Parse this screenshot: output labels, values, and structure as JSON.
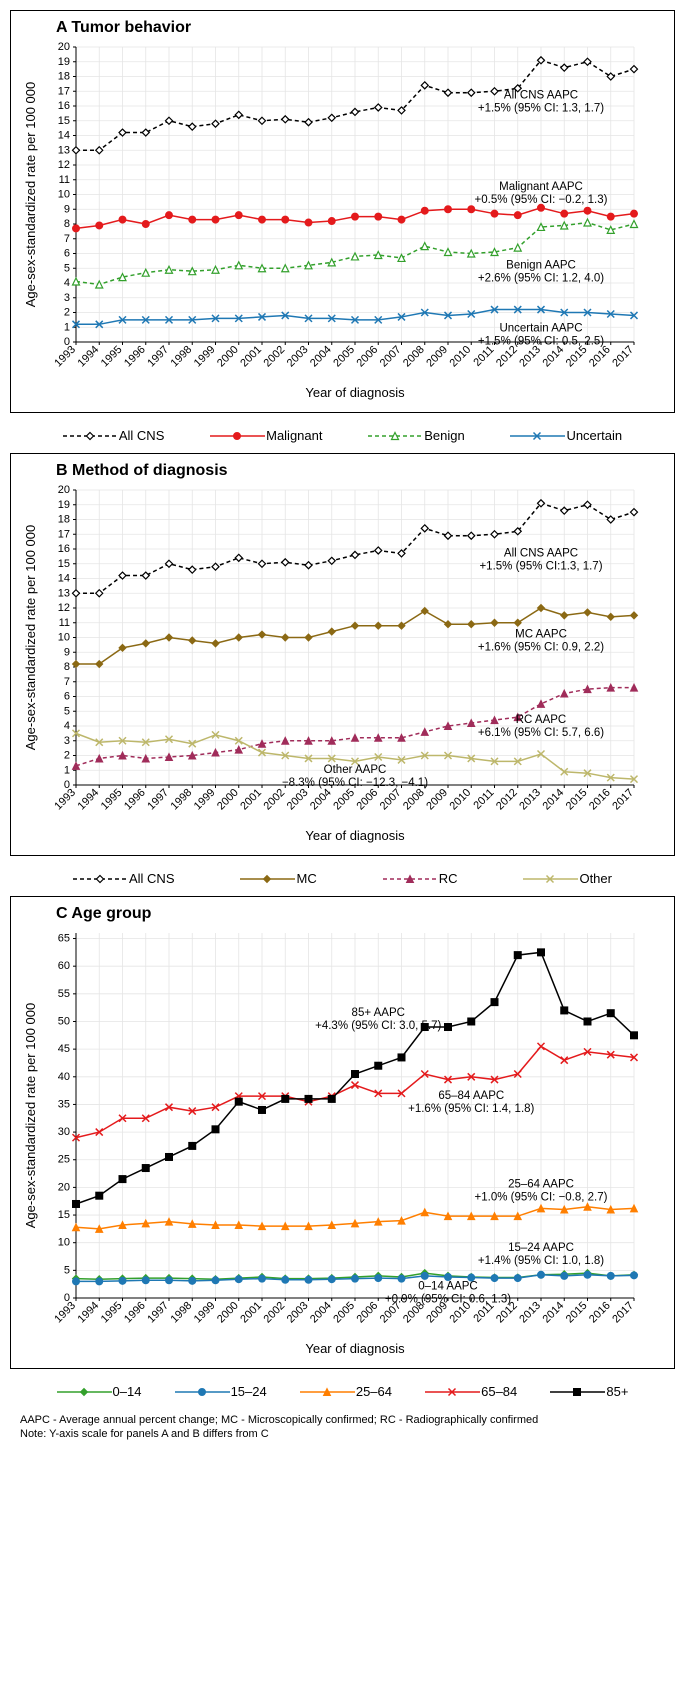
{
  "years": [
    1993,
    1994,
    1995,
    1996,
    1997,
    1998,
    1999,
    2000,
    2001,
    2002,
    2003,
    2004,
    2005,
    2006,
    2007,
    2008,
    2009,
    2010,
    2011,
    2012,
    2013,
    2014,
    2015,
    2016,
    2017
  ],
  "panelA": {
    "title": "A Tumor behavior",
    "ylabel": "Age-sex-standardized rate per 100 000",
    "xlabel": "Year of diagnosis",
    "ylim": [
      0,
      20
    ],
    "ytick_step": 1,
    "grid_color": "#e5e5e5",
    "series": {
      "allcns": {
        "label": "All CNS",
        "color": "#000000",
        "dash": "4,3",
        "marker": "diamond",
        "values": [
          13.0,
          13.0,
          14.2,
          14.2,
          15.0,
          14.6,
          14.8,
          15.4,
          15.0,
          15.1,
          14.9,
          15.2,
          15.6,
          15.9,
          15.7,
          17.4,
          16.9,
          16.9,
          17.0,
          17.2,
          19.1,
          18.6,
          19.0,
          18.0,
          18.5
        ],
        "annotation": "All CNS AAPC\n+1.5% (95% CI: 1.3, 1.7)",
        "ann_x": 2013,
        "ann_y": 16.5
      },
      "malignant": {
        "label": "Malignant",
        "color": "#e41a1c",
        "dash": "",
        "marker": "circle",
        "values": [
          7.7,
          7.9,
          8.3,
          8.0,
          8.6,
          8.3,
          8.3,
          8.6,
          8.3,
          8.3,
          8.1,
          8.2,
          8.5,
          8.5,
          8.3,
          8.9,
          9.0,
          9.0,
          8.7,
          8.6,
          9.1,
          8.7,
          8.9,
          8.5,
          8.7
        ],
        "annotation": "Malignant AAPC\n+0.5% (95% CI: −0.2, 1.3)",
        "ann_x": 2013,
        "ann_y": 10.3
      },
      "benign": {
        "label": "Benign",
        "color": "#33a02c",
        "dash": "4,3",
        "marker": "triangle",
        "values": [
          4.1,
          3.9,
          4.4,
          4.7,
          4.9,
          4.8,
          4.9,
          5.2,
          5.0,
          5.0,
          5.2,
          5.4,
          5.8,
          5.9,
          5.7,
          6.5,
          6.1,
          6.0,
          6.1,
          6.4,
          7.8,
          7.9,
          8.1,
          7.6,
          8.0
        ],
        "annotation": "Benign AAPC\n+2.6% (95% CI: 1.2, 4.0)",
        "ann_x": 2013,
        "ann_y": 5.0
      },
      "uncertain": {
        "label": "Uncertain",
        "color": "#1f78b4",
        "dash": "",
        "marker": "x",
        "values": [
          1.2,
          1.2,
          1.5,
          1.5,
          1.5,
          1.5,
          1.6,
          1.6,
          1.7,
          1.8,
          1.6,
          1.6,
          1.5,
          1.5,
          1.7,
          2.0,
          1.8,
          1.9,
          2.2,
          2.2,
          2.2,
          2.0,
          2.0,
          1.9,
          1.8
        ],
        "annotation": "Uncertain AAPC\n+1.5% (95% CI: 0.5, 2.5)",
        "ann_x": 2013,
        "ann_y": 0.7
      }
    }
  },
  "panelB": {
    "title": "B Method of diagnosis",
    "ylabel": "Age-sex-standardized rate per 100 000",
    "xlabel": "Year of diagnosis",
    "ylim": [
      0,
      20
    ],
    "ytick_step": 1,
    "grid_color": "#e5e5e5",
    "series": {
      "allcns": {
        "label": "All CNS",
        "color": "#000000",
        "dash": "4,3",
        "marker": "diamond",
        "values": [
          13.0,
          13.0,
          14.2,
          14.2,
          15.0,
          14.6,
          14.8,
          15.4,
          15.0,
          15.1,
          14.9,
          15.2,
          15.6,
          15.9,
          15.7,
          17.4,
          16.9,
          16.9,
          17.0,
          17.2,
          19.1,
          18.6,
          19.0,
          18.0,
          18.5
        ],
        "annotation": "All CNS AAPC\n+1.5% (95% CI:1.3, 1.7)",
        "ann_x": 2013,
        "ann_y": 15.5
      },
      "mc": {
        "label": "MC",
        "color": "#8b6914",
        "dash": "",
        "marker": "diamond-solid",
        "values": [
          8.2,
          8.2,
          9.3,
          9.6,
          10.0,
          9.8,
          9.6,
          10.0,
          10.2,
          10.0,
          10.0,
          10.4,
          10.8,
          10.8,
          10.8,
          11.8,
          10.9,
          10.9,
          11.0,
          11.0,
          12.0,
          11.5,
          11.7,
          11.4,
          11.5
        ],
        "annotation": "MC AAPC\n+1.6% (95% CI: 0.9, 2.2)",
        "ann_x": 2013,
        "ann_y": 10.0
      },
      "rc": {
        "label": "RC",
        "color": "#a02c5a",
        "dash": "4,3",
        "marker": "triangle-solid",
        "values": [
          1.3,
          1.8,
          2.0,
          1.8,
          1.9,
          2.0,
          2.2,
          2.4,
          2.8,
          3.0,
          3.0,
          3.0,
          3.2,
          3.2,
          3.2,
          3.6,
          4.0,
          4.2,
          4.4,
          4.6,
          5.5,
          6.2,
          6.5,
          6.6,
          6.6
        ],
        "annotation": "RC AAPC\n+6.1% (95% CI: 5.7, 6.6)",
        "ann_x": 2013,
        "ann_y": 4.2
      },
      "other": {
        "label": "Other",
        "color": "#bdb76b",
        "dash": "",
        "marker": "x",
        "values": [
          3.5,
          2.9,
          3.0,
          2.9,
          3.1,
          2.8,
          3.4,
          3.0,
          2.2,
          2.0,
          1.8,
          1.8,
          1.6,
          1.9,
          1.7,
          2.0,
          2.0,
          1.8,
          1.6,
          1.6,
          2.1,
          0.9,
          0.8,
          0.5,
          0.4
        ],
        "annotation": "Other AAPC\n−8.3% (95% CI: −12.3, −4.1)",
        "ann_x": 2005,
        "ann_y": 0.8
      }
    }
  },
  "panelC": {
    "title": "C Age group",
    "ylabel": "Age-sex-standardized rate per 100 000",
    "xlabel": "Year of diagnosis",
    "ylim": [
      0,
      66
    ],
    "ytick_step": 5,
    "grid_color": "#e5e5e5",
    "series": {
      "g014": {
        "label": "0–14",
        "color": "#33a02c",
        "dash": "",
        "marker": "diamond-solid",
        "values": [
          3.5,
          3.4,
          3.5,
          3.6,
          3.6,
          3.5,
          3.4,
          3.6,
          3.8,
          3.5,
          3.5,
          3.6,
          3.8,
          4.0,
          3.8,
          4.5,
          4.0,
          3.8,
          3.7,
          3.7,
          4.2,
          4.3,
          4.5,
          4.0,
          4.2
        ],
        "annotation": "0–14 AAPC\n+0.9% (95% CI: 0.6, 1.3)",
        "ann_x": 2009,
        "ann_y": 1.5
      },
      "g1524": {
        "label": "15–24",
        "color": "#1f78b4",
        "dash": "",
        "marker": "circle",
        "values": [
          3.0,
          3.0,
          3.1,
          3.2,
          3.2,
          3.1,
          3.2,
          3.4,
          3.5,
          3.3,
          3.3,
          3.4,
          3.5,
          3.6,
          3.5,
          4.0,
          3.8,
          3.7,
          3.6,
          3.6,
          4.2,
          4.0,
          4.2,
          4.0,
          4.1
        ],
        "annotation": "15–24 AAPC\n+1.4% (95% CI: 1.0, 1.8)",
        "ann_x": 2013,
        "ann_y": 8.5
      },
      "g2564": {
        "label": "25–64",
        "color": "#ff7f00",
        "dash": "",
        "marker": "triangle-solid",
        "values": [
          12.8,
          12.5,
          13.2,
          13.5,
          13.8,
          13.4,
          13.2,
          13.2,
          13.0,
          13.0,
          13.0,
          13.2,
          13.5,
          13.8,
          14.0,
          15.5,
          14.8,
          14.8,
          14.8,
          14.8,
          16.2,
          16.0,
          16.5,
          16.0,
          16.2
        ],
        "annotation": "25–64 AAPC\n+1.0% (95% CI: −0.8, 2.7)",
        "ann_x": 2013,
        "ann_y": 20.0
      },
      "g6584": {
        "label": "65–84",
        "color": "#e41a1c",
        "dash": "",
        "marker": "x",
        "values": [
          29.0,
          30.0,
          32.5,
          32.5,
          34.5,
          33.8,
          34.5,
          36.5,
          36.5,
          36.5,
          35.5,
          36.5,
          38.5,
          37.0,
          37.0,
          40.5,
          39.5,
          40.0,
          39.5,
          40.5,
          45.5,
          43.0,
          44.5,
          44.0,
          43.5
        ],
        "annotation": "65–84 AAPC\n+1.6% (95% CI: 1.4, 1.8)",
        "ann_x": 2010,
        "ann_y": 36.0
      },
      "g85": {
        "label": "85+",
        "color": "#000000",
        "dash": "",
        "marker": "square",
        "values": [
          17.0,
          18.5,
          21.5,
          23.5,
          25.5,
          27.5,
          30.5,
          35.5,
          34.0,
          36.0,
          36.0,
          36.0,
          40.5,
          42.0,
          43.5,
          49.0,
          49.0,
          50.0,
          53.5,
          62.0,
          62.5,
          52.0,
          50.0,
          51.5,
          47.5
        ],
        "annotation": "85+ AAPC\n+4.3% (95% CI: 3.0, 5.7)",
        "ann_x": 2006,
        "ann_y": 51.0
      }
    }
  },
  "footnote_line1": "AAPC - Average annual percent change; MC - Microscopically confirmed; RC - Radiographically confirmed",
  "footnote_line2": "Note: Y-axis scale for panels A and B differs from C"
}
